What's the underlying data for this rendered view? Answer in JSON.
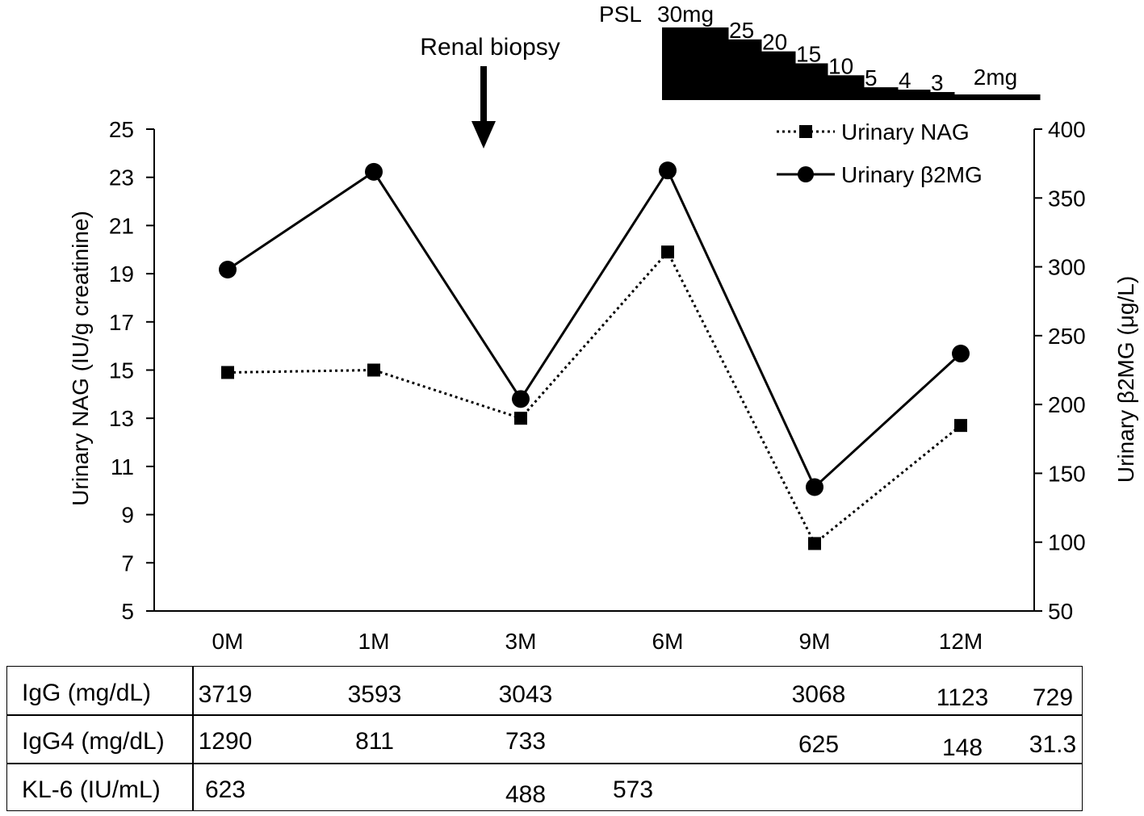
{
  "chart_data": {
    "type": "line",
    "categories": [
      "0M",
      "1M",
      "3M",
      "6M",
      "9M",
      "12M"
    ],
    "y_left": {
      "label": "Urinary NAG (IU/g creatinine)",
      "range": [
        5,
        25
      ],
      "ticks": [
        5,
        7,
        9,
        11,
        13,
        15,
        17,
        19,
        21,
        23,
        25
      ]
    },
    "y_right": {
      "label": "Urinary β2MG (μg/L)",
      "range": [
        50,
        400
      ],
      "ticks": [
        50,
        100,
        150,
        200,
        250,
        300,
        350,
        400
      ]
    },
    "series": [
      {
        "name": "Urinary NAG",
        "axis": "left",
        "style": "dotted",
        "marker": "square",
        "values": [
          14.9,
          15.0,
          13.0,
          19.9,
          7.8,
          12.7
        ]
      },
      {
        "name": "Urinary β2MG",
        "axis": "right",
        "style": "solid",
        "marker": "circle",
        "values": [
          298,
          369,
          204,
          370,
          140,
          237
        ]
      }
    ],
    "legend_position": "top-right",
    "annotation": {
      "text": "Renal biopsy",
      "between": [
        "1M",
        "3M"
      ]
    },
    "psl": {
      "label": "PSL",
      "steps": [
        {
          "label": "30mg",
          "dose": 30
        },
        {
          "label": "25",
          "dose": 25
        },
        {
          "label": "20",
          "dose": 20
        },
        {
          "label": "15",
          "dose": 15
        },
        {
          "label": "10",
          "dose": 10
        },
        {
          "label": "5",
          "dose": 5
        },
        {
          "label": "4",
          "dose": 4
        },
        {
          "label": "3",
          "dose": 3
        },
        {
          "label": "2mg",
          "dose": 2
        }
      ]
    }
  },
  "lab_table": {
    "rows": [
      {
        "label": "IgG (mg/dL)",
        "values": [
          "3719",
          "3593",
          "3043",
          "",
          "3068",
          "1123",
          "729"
        ]
      },
      {
        "label": "IgG4 (mg/dL)",
        "values": [
          "1290",
          "811",
          "733",
          "",
          "625",
          "148",
          "31.3"
        ]
      },
      {
        "label": "KL-6 (IU/mL)",
        "values": [
          "623",
          "",
          "488",
          "573",
          "",
          "",
          ""
        ]
      }
    ]
  }
}
